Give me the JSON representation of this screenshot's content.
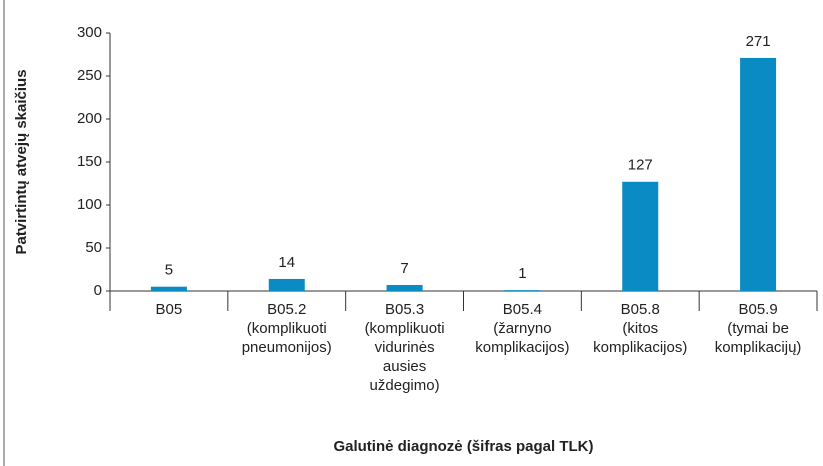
{
  "chart_data": {
    "type": "bar",
    "y_label": "Patvirtintų atvejų skaičius",
    "x_label": "Galutinė diagnozė (šifras pagal TLK)",
    "categories": [
      "B05",
      "B05.2\n(komplikuoti\npneumonijos)",
      "B05.3\n(komplikuoti\nvidurinės\nausies\nuždegimo)",
      "B05.4\n(žarnyno\nkomplikacijos)",
      "B05.8\n(kitos\nkomplikacijos)",
      "B05.9\n(tymai be\nkomplikacijų)"
    ],
    "values": [
      5,
      14,
      7,
      1,
      127,
      271
    ],
    "color": "#0a8bc4",
    "ylim": [
      0,
      300
    ],
    "yticks": [
      0,
      50,
      100,
      150,
      200,
      250,
      300
    ],
    "grid": false
  }
}
